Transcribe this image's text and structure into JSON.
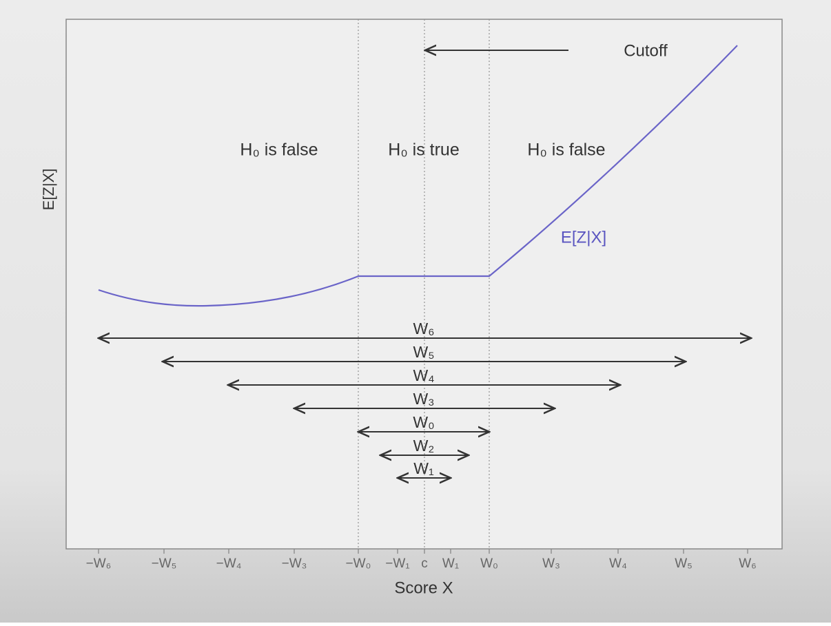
{
  "plot": {
    "x_label": "Score X",
    "y_label": "E[Z|X]",
    "cutoff_label": "Cutoff",
    "curve_label": "E[Z|X]",
    "regions": [
      "H₀ is false",
      "H₀ is true",
      "H₀ is false"
    ],
    "x_ticks": [
      "−W₆",
      "−W₅",
      "−W₄",
      "−W₃",
      "−W₀",
      "−W₁",
      "c",
      "W₁",
      "W₀",
      "W₃",
      "W₄",
      "W₅",
      "W₆"
    ],
    "intervals": [
      "W₆",
      "W₅",
      "W₄",
      "W₃",
      "W₀",
      "W₂",
      "W₁"
    ]
  }
}
